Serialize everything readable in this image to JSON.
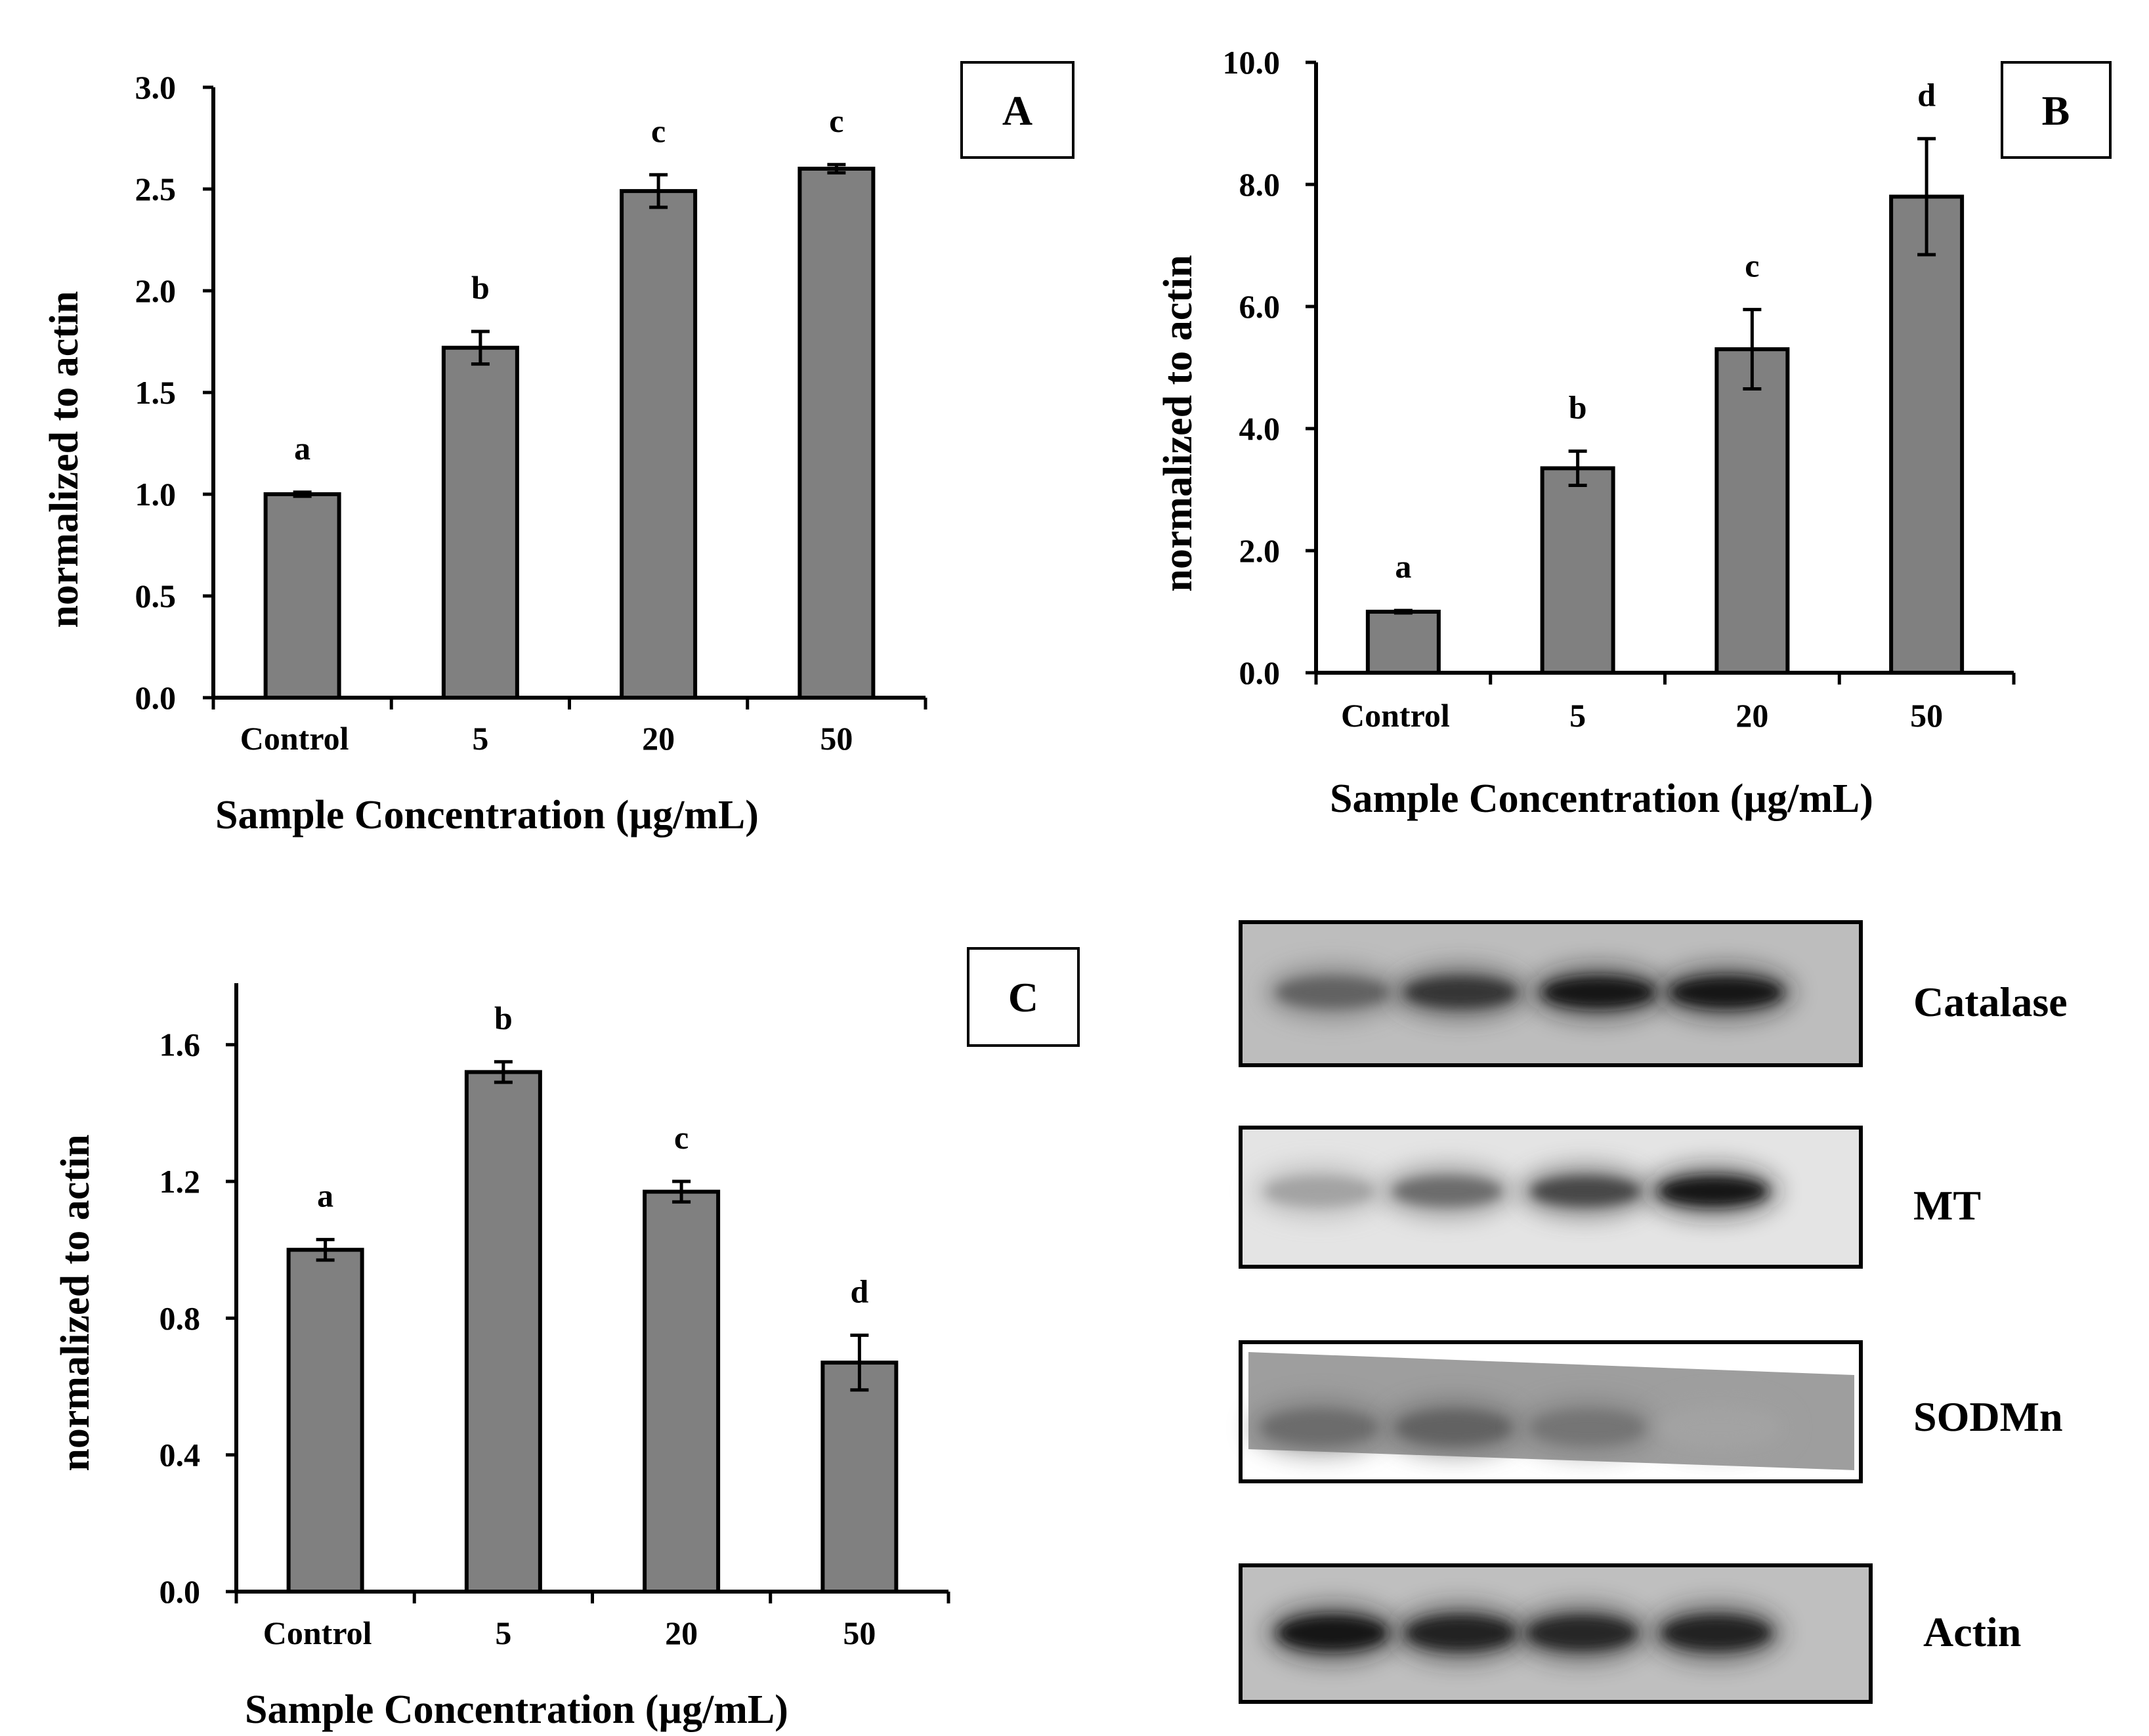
{
  "chart_data": [
    {
      "id": "A",
      "type": "bar",
      "panel_label": "A",
      "title": "",
      "xlabel": "Sample Concentration (µg/mL)",
      "ylabel": "normalized to actin",
      "categories": [
        "Control",
        "5",
        "20",
        "50"
      ],
      "values": [
        1.0,
        1.72,
        2.49,
        2.6
      ],
      "errors": [
        0.01,
        0.08,
        0.08,
        0.02
      ],
      "significance": [
        "a",
        "b",
        "c",
        "c"
      ],
      "ylim": [
        0,
        3.0
      ],
      "yticks": [
        "0.0",
        "0.5",
        "1.0",
        "1.5",
        "2.0",
        "2.5",
        "3.0"
      ],
      "grid": false,
      "bar_color": "#808080"
    },
    {
      "id": "B",
      "type": "bar",
      "panel_label": "B",
      "title": "",
      "xlabel": "Sample Concentration (µg/mL)",
      "ylabel": "normalized to actin",
      "categories": [
        "Control",
        "5",
        "20",
        "50"
      ],
      "values": [
        1.0,
        3.35,
        5.3,
        7.8
      ],
      "errors": [
        0.02,
        0.28,
        0.65,
        0.95
      ],
      "significance": [
        "a",
        "b",
        "c",
        "d"
      ],
      "ylim": [
        0,
        10.0
      ],
      "yticks": [
        "0.0",
        "2.0",
        "4.0",
        "6.0",
        "8.0",
        "10.0"
      ],
      "grid": false,
      "bar_color": "#808080"
    },
    {
      "id": "C",
      "type": "bar",
      "panel_label": "C",
      "title": "",
      "xlabel": "Sample Concentration (µg/mL)",
      "ylabel": "normalized to actin",
      "categories": [
        "Control",
        "5",
        "20",
        "50"
      ],
      "values": [
        1.0,
        1.52,
        1.17,
        0.67
      ],
      "errors": [
        0.03,
        0.03,
        0.03,
        0.08
      ],
      "significance": [
        "a",
        "b",
        "c",
        "d"
      ],
      "ylim": [
        0,
        1.78
      ],
      "yticks": [
        "0.0",
        "0.4",
        "0.8",
        "1.2",
        "1.6"
      ],
      "ytick_values": [
        0.0,
        0.4,
        0.8,
        1.2,
        1.6
      ],
      "grid": false,
      "bar_color": "#808080"
    }
  ],
  "western_blot": {
    "bands": [
      {
        "label": "Catalase",
        "intensities": [
          0.55,
          0.8,
          0.95,
          0.97
        ]
      },
      {
        "label": "MT",
        "intensities": [
          0.2,
          0.5,
          0.7,
          0.95
        ]
      },
      {
        "label": "SODMn",
        "intensities": [
          0.5,
          0.55,
          0.45,
          0.2
        ]
      },
      {
        "label": "Actin",
        "intensities": [
          0.95,
          0.9,
          0.88,
          0.9
        ]
      }
    ]
  }
}
